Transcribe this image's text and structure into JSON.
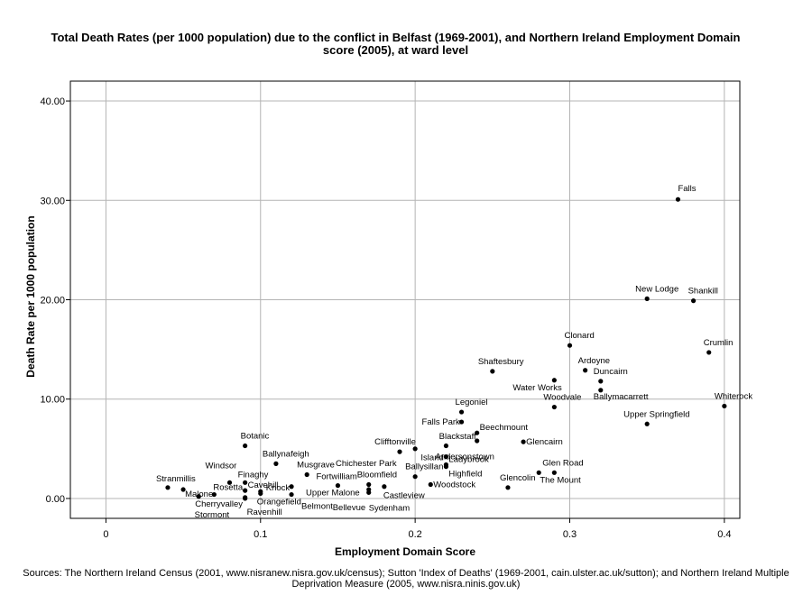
{
  "chart_data": {
    "type": "scatter",
    "title": "Total Death Rates (per 1000 population) due to the conflict in Belfast (1969-2001), and Northern Ireland Employment Domain score (2005), at ward level",
    "xlabel": "Employment Domain Score",
    "ylabel": "Death Rate per 1000 population",
    "xlim": [
      -0.023,
      0.41
    ],
    "ylim": [
      -2.0,
      42.0
    ],
    "x_ticks": [
      0,
      0.1,
      0.2,
      0.3,
      0.4
    ],
    "x_tick_labels": [
      "0",
      "0.1",
      "0.2",
      "0.3",
      "0.4"
    ],
    "y_ticks": [
      0,
      10,
      20,
      30,
      40
    ],
    "y_tick_labels": [
      "0.00",
      "10.00",
      "20.00",
      "30.00",
      "40.00"
    ],
    "grid": true,
    "legend": "none",
    "colors": {
      "point": "#000000",
      "grid": "#b4b4b4",
      "frame": "#000000"
    },
    "points": [
      {
        "label": "Falls",
        "x": 0.37,
        "y": 30.1
      },
      {
        "label": "New Lodge",
        "x": 0.35,
        "y": 20.1
      },
      {
        "label": "Shankill",
        "x": 0.38,
        "y": 19.9
      },
      {
        "label": "Clonard",
        "x": 0.3,
        "y": 15.4
      },
      {
        "label": "Crumlin",
        "x": 0.39,
        "y": 14.7
      },
      {
        "label": "Ardoyne",
        "x": 0.31,
        "y": 12.9
      },
      {
        "label": "Shaftesbury",
        "x": 0.25,
        "y": 12.8
      },
      {
        "label": "Duncairn",
        "x": 0.32,
        "y": 11.8
      },
      {
        "label": "Water Works",
        "x": 0.29,
        "y": 11.9
      },
      {
        "label": "Ballymacarrett",
        "x": 0.32,
        "y": 10.9
      },
      {
        "label": "Whiterock",
        "x": 0.4,
        "y": 9.3
      },
      {
        "label": "Woodvale",
        "x": 0.29,
        "y": 9.2
      },
      {
        "label": "Legoniel",
        "x": 0.23,
        "y": 8.7
      },
      {
        "label": "Falls Park",
        "x": 0.23,
        "y": 7.7
      },
      {
        "label": "Upper Springfield",
        "x": 0.35,
        "y": 7.5
      },
      {
        "label": "Beechmount",
        "x": 0.24,
        "y": 6.6
      },
      {
        "label": "Blackstaff",
        "x": 0.24,
        "y": 5.8
      },
      {
        "label": "Glencairn",
        "x": 0.27,
        "y": 5.7
      },
      {
        "label": "Andersonstown",
        "x": 0.22,
        "y": 5.3
      },
      {
        "label": "Botanic",
        "x": 0.09,
        "y": 5.3
      },
      {
        "label": "Clifftonville",
        "x": 0.2,
        "y": 5.0
      },
      {
        "label": "Chichester Park",
        "x": 0.19,
        "y": 4.7
      },
      {
        "label": "Island",
        "x": 0.22,
        "y": 4.2
      },
      {
        "label": "Ballynafeigh",
        "x": 0.11,
        "y": 3.5
      },
      {
        "label": "Ladybrook",
        "x": 0.22,
        "y": 3.4
      },
      {
        "label": "Highfield",
        "x": 0.22,
        "y": 3.2
      },
      {
        "label": "Musgrave",
        "x": 0.13,
        "y": 2.4
      },
      {
        "label": "Glen Road",
        "x": 0.28,
        "y": 2.6
      },
      {
        "label": "The Mount",
        "x": 0.29,
        "y": 2.6
      },
      {
        "label": "Ballysillan",
        "x": 0.2,
        "y": 2.2
      },
      {
        "label": "Windsor",
        "x": 0.08,
        "y": 1.6
      },
      {
        "label": "Finaghy",
        "x": 0.09,
        "y": 1.6
      },
      {
        "label": "Fortwilliam",
        "x": 0.15,
        "y": 1.3
      },
      {
        "label": "Bloomfield",
        "x": 0.17,
        "y": 1.4
      },
      {
        "label": "Woodstock",
        "x": 0.21,
        "y": 1.4
      },
      {
        "label": "Glencolin",
        "x": 0.26,
        "y": 1.1
      },
      {
        "label": "Stranmillis",
        "x": 0.04,
        "y": 1.1
      },
      {
        "label": "Cavehill",
        "x": 0.09,
        "y": 0.8
      },
      {
        "label": "Malone",
        "x": 0.05,
        "y": 0.9
      },
      {
        "label": "Rosetta",
        "x": 0.07,
        "y": 0.4
      },
      {
        "label": "Knock",
        "x": 0.1,
        "y": 0.7
      },
      {
        "label": "Upper Malone",
        "x": 0.12,
        "y": 1.2
      },
      {
        "label": "Castleview",
        "x": 0.18,
        "y": 1.2
      },
      {
        "label": "Belmont",
        "x": 0.12,
        "y": 0.4
      },
      {
        "label": "Bellevue",
        "x": 0.17,
        "y": 0.9
      },
      {
        "label": "Sydenham",
        "x": 0.17,
        "y": 0.6
      },
      {
        "label": "Orangefield",
        "x": 0.1,
        "y": 0.5
      },
      {
        "label": "Cherryvalley",
        "x": 0.06,
        "y": 0.2
      },
      {
        "label": "Ravenhill",
        "x": 0.09,
        "y": 0.1
      },
      {
        "label": "Stormont",
        "x": 0.09,
        "y": 0.0
      }
    ],
    "source": "Sources: The Northern Ireland Census (2001, www.nisranew.nisra.gov.uk/census); Sutton 'Index of Deaths' (1969-2001, cain.ulster.ac.uk/sutton); and Northern Ireland Multiple Deprivation Measure (2005, www.nisra.ninis.gov.uk)"
  }
}
